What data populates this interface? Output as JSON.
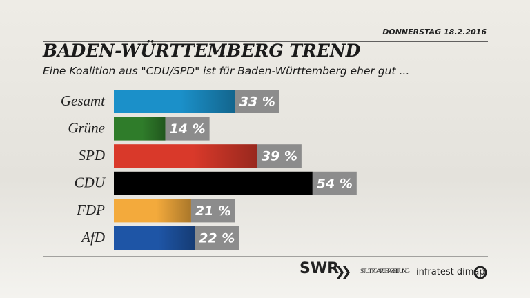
{
  "chart_data": {
    "type": "bar",
    "orientation": "horizontal",
    "date": "DONNERSTAG 18.2.2016",
    "title": "BADEN-WÜRTTEMBERG TREND",
    "subtitle": "Eine Koalition aus \"CDU/SPD\" ist für Baden-Württemberg eher gut ...",
    "categories": [
      "Gesamt",
      "Grüne",
      "SPD",
      "CDU",
      "FDP",
      "AfD"
    ],
    "values": [
      33,
      14,
      39,
      54,
      21,
      22
    ],
    "value_labels": [
      "33 %",
      "14 %",
      "39 %",
      "54 %",
      "21 %",
      "22 %"
    ],
    "colors": [
      "#1b90c9",
      "#2f7c2a",
      "#d9392a",
      "#000000",
      "#f3aa3c",
      "#1e55a6"
    ],
    "logos": [
      "SWR",
      "STUTTGARTER ZEITUNG",
      "infratest dimap"
    ]
  }
}
